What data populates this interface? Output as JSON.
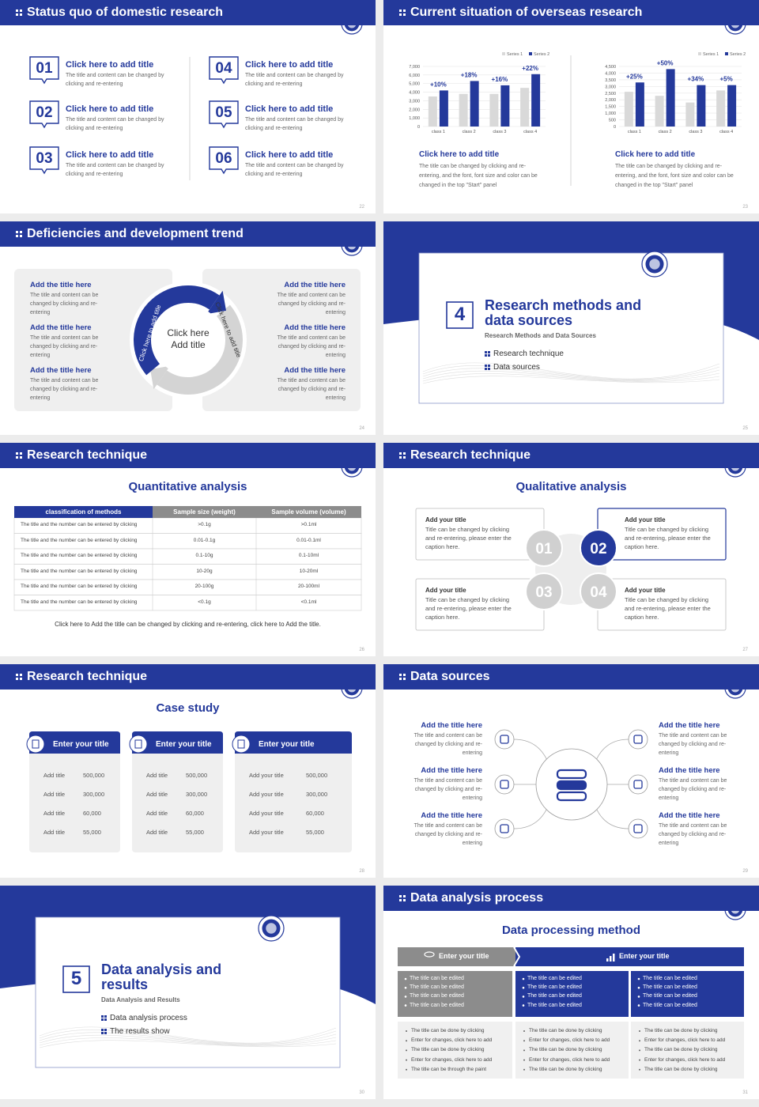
{
  "slides": [
    {
      "title": "Status quo of domestic research",
      "page": "22",
      "items": [
        {
          "num": "01",
          "title": "Click here to add title",
          "text": "The title and content can be changed by clicking and re-entering"
        },
        {
          "num": "02",
          "title": "Click here to add title",
          "text": "The title and content can be changed by clicking and re-entering"
        },
        {
          "num": "03",
          "title": "Click here to add title",
          "text": "The title and content can be changed by clicking and re-entering"
        },
        {
          "num": "04",
          "title": "Click here to add title",
          "text": "The title and content can be changed by clicking and re-entering"
        },
        {
          "num": "05",
          "title": "Click here to add title",
          "text": "The title and content can be changed by clicking and re-entering"
        },
        {
          "num": "06",
          "title": "Click here to add title",
          "text": "The title and content can be changed by clicking and re-entering"
        }
      ]
    },
    {
      "title": "Current situation of overseas research",
      "page": "23",
      "charts": [
        {
          "type": "bar",
          "categories": [
            "class 1",
            "class 2",
            "class 3",
            "class 4"
          ],
          "series": [
            {
              "name": "Series 1",
              "color": "#d9d9d9",
              "values": [
                3500,
                3800,
                3800,
                4500
              ]
            },
            {
              "name": "Series 2",
              "color": "#24399b",
              "values": [
                4200,
                5300,
                4800,
                6100
              ]
            }
          ],
          "ylim": [
            0,
            7000
          ],
          "yticks": [
            0,
            {
              "value": 1000,
              "label": "1,000"
            },
            {
              "value": 2000,
              "label": "2,000"
            },
            {
              "value": 3000,
              "label": "3,000"
            },
            {
              "value": 4000,
              "label": "4,000"
            },
            {
              "value": 5000,
              "label": "5,000"
            },
            {
              "value": 6000,
              "label": "6,000"
            },
            {
              "value": 7000,
              "label": "7,000"
            }
          ],
          "grid": true,
          "annotations": [
            "+10%",
            "+18%",
            "+16%",
            "+22%"
          ],
          "caption_title": "Click here to add title",
          "caption": "The title can be changed by clicking and re-entering, and the font, font size and color can be changed in the top \"Start\" panel"
        },
        {
          "type": "bar",
          "categories": [
            "class 1",
            "class 2",
            "class 3",
            "class 4"
          ],
          "series": [
            {
              "name": "Series 1",
              "color": "#d9d9d9",
              "values": [
                2600,
                2300,
                1800,
                2700
              ]
            },
            {
              "name": "Series 2",
              "color": "#24399b",
              "values": [
                3300,
                4300,
                3100,
                3100
              ]
            }
          ],
          "ylim": [
            0,
            4500
          ],
          "yticks": [
            0,
            500,
            {
              "value": 1000,
              "label": "1,000"
            },
            {
              "value": 1500,
              "label": "1,500"
            },
            {
              "value": 2000,
              "label": "2,000"
            },
            {
              "value": 2500,
              "label": "2,500"
            },
            {
              "value": 3000,
              "label": "3,000"
            },
            {
              "value": 3500,
              "label": "3,500"
            },
            {
              "value": 4000,
              "label": "4,000"
            },
            {
              "value": 4500,
              "label": "4,500"
            }
          ],
          "grid": true,
          "annotations": [
            "+25%",
            "+50%",
            "+34%",
            "+5%"
          ],
          "caption_title": "Click here to add title",
          "caption": "The title can be changed by clicking and re-entering, and the font, font size and color can be changed in the top \"Start\" panel"
        }
      ]
    },
    {
      "title": "Deficiencies and development trend",
      "page": "24",
      "center": "Click here Add title",
      "arc_labels": [
        "Click here to add title",
        "Click here to add title"
      ],
      "left": [
        {
          "title": "Add the title here",
          "text": "The title and content can be changed by clicking and re-entering"
        },
        {
          "title": "Add the title here",
          "text": "The title and content can be changed by clicking and re-entering"
        },
        {
          "title": "Add the title here",
          "text": "The title and content can be changed by clicking and re-entering"
        }
      ],
      "right": [
        {
          "title": "Add the title here",
          "text": "The title and content can be changed by clicking and re-entering"
        },
        {
          "title": "Add the title here",
          "text": "The title and content can be changed by clicking and re-entering"
        },
        {
          "title": "Add the title here",
          "text": "The title and content can be changed by clicking and re-entering"
        }
      ]
    },
    {
      "number": "4",
      "title": "Research methods and data sources",
      "subtitle": "Research Methods and Data Sources",
      "bullets": [
        "Research technique",
        "Data sources"
      ],
      "page": "25"
    },
    {
      "title": "Research technique",
      "page": "26",
      "heading": "Quantitative analysis",
      "header": [
        "classification of methods",
        "Sample size (weight)",
        "Sample volume (volume)"
      ],
      "rows": [
        [
          "The title and the number can be entered by clicking",
          ">0.1g",
          ">0.1ml"
        ],
        [
          "The title and the number can be entered by clicking",
          "0.01-0.1g",
          "0.01-0.1ml"
        ],
        [
          "The title and the number can be entered by clicking",
          "0.1-10g",
          "0.1-10ml"
        ],
        [
          "The title and the number can be entered by clicking",
          "10-20g",
          "10-20ml"
        ],
        [
          "The title and the number can be entered by clicking",
          "20-100g",
          "20-100ml"
        ],
        [
          "The title and the number can be entered by clicking",
          "<0.1g",
          "<0.1ml"
        ]
      ],
      "note": "Click here to Add the title can be changed by clicking and re-entering, click here to Add the title."
    },
    {
      "title": "Research technique",
      "page": "27",
      "heading": "Qualitative analysis",
      "items": [
        {
          "num": "01",
          "title": "Add your title",
          "text": "Title can be changed by clicking and re-entering, please enter the caption here."
        },
        {
          "num": "02",
          "title": "Add your title",
          "text": "Title can be changed by clicking and re-entering, please enter the caption here."
        },
        {
          "num": "03",
          "title": "Add your title",
          "text": "Title can be changed by clicking and re-entering, please enter the caption here."
        },
        {
          "num": "04",
          "title": "Add your title",
          "text": "Title can be changed by clicking and re-entering, please enter the caption here."
        }
      ]
    },
    {
      "title": "Research technique",
      "page": "28",
      "heading": "Case study",
      "cards": [
        {
          "title": "Enter your title",
          "rows": [
            [
              "Add title",
              "500,000"
            ],
            [
              "Add title",
              "300,000"
            ],
            [
              "Add title",
              "60,000"
            ],
            [
              "Add title",
              "55,000"
            ]
          ]
        },
        {
          "title": "Enter your title",
          "rows": [
            [
              "Add title",
              "500,000"
            ],
            [
              "Add title",
              "300,000"
            ],
            [
              "Add title",
              "60,000"
            ],
            [
              "Add title",
              "55,000"
            ]
          ]
        },
        {
          "title": "Enter your title",
          "rows": [
            [
              "Add your title",
              "500,000"
            ],
            [
              "Add your title",
              "300,000"
            ],
            [
              "Add your title",
              "60,000"
            ],
            [
              "Add your title",
              "55,000"
            ]
          ]
        }
      ]
    },
    {
      "title": "Data sources",
      "page": "29",
      "items": [
        {
          "title": "Add the title here",
          "text": "The title and content can be changed by clicking and re-entering"
        },
        {
          "title": "Add the title here",
          "text": "The title and content can be changed by clicking and re-entering"
        },
        {
          "title": "Add the title here",
          "text": "The title and content can be changed by clicking and re-entering"
        },
        {
          "title": "Add the title here",
          "text": "The title and content can be changed by clicking and re-entering"
        },
        {
          "title": "Add the title here",
          "text": "The title and content can be changed by clicking and re-entering"
        },
        {
          "title": "Add the title here",
          "text": "The title and content can be changed by clicking and re-entering"
        }
      ]
    },
    {
      "number": "5",
      "title": "Data analysis and results",
      "subtitle": "Data Analysis and Results",
      "bullets": [
        "Data analysis process",
        "The results show"
      ],
      "page": "30"
    },
    {
      "title": "Data analysis process",
      "page": "31",
      "heading": "Data processing method",
      "tabs": [
        "Enter your title",
        "Enter your title"
      ],
      "blocks": [
        [
          "The title can be edited",
          "The title can be edited",
          "The title can be edited",
          "The title can be edited"
        ],
        [
          "The title can be edited",
          "The title can be edited",
          "The title can be edited",
          "The title can be edited"
        ],
        [
          "The title can be edited",
          "The title can be edited",
          "The title can be edited",
          "The title can be edited"
        ]
      ],
      "lists": [
        [
          "The title can be done by clicking",
          "Enter for changes, click here to add",
          "The title can be done by clicking",
          "Enter for changes, click here to add",
          "The title can be through the paint"
        ],
        [
          "The title can be done by clicking",
          "Enter for changes, click here to add",
          "The title can be done by clicking",
          "Enter for changes, click here to add",
          "The title can be done by clicking"
        ],
        [
          "The title can be done by clicking",
          "Enter for changes, click here to add",
          "The title can be done by clicking",
          "Enter for changes, click here to add",
          "The title can be done by clicking"
        ]
      ]
    }
  ]
}
